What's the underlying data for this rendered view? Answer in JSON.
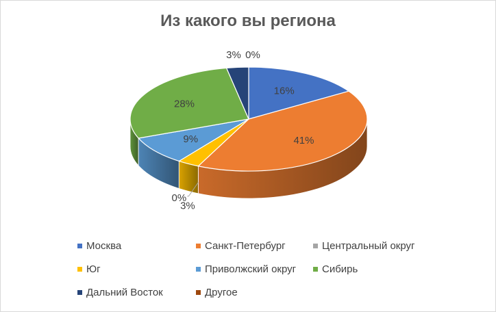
{
  "chart_data": {
    "type": "pie",
    "title": "Из какого вы региона",
    "categories": [
      "Москва",
      "Санкт-Петербург",
      "Центральный округ",
      "Юг",
      "Приволжский округ",
      "Сибирь",
      "Дальний Восток",
      "Другое"
    ],
    "values": [
      16,
      41,
      0,
      3,
      9,
      28,
      3,
      0
    ],
    "data_labels": [
      "16%",
      "41%",
      "0%",
      "3%",
      "9%",
      "28%",
      "3%",
      "0%"
    ],
    "colors": [
      "#4472c4",
      "#ed7d31",
      "#a5a5a5",
      "#ffc000",
      "#5b9bd5",
      "#70ad47",
      "#264478",
      "#9e480e"
    ],
    "legend_position": "bottom",
    "style": "3d"
  }
}
